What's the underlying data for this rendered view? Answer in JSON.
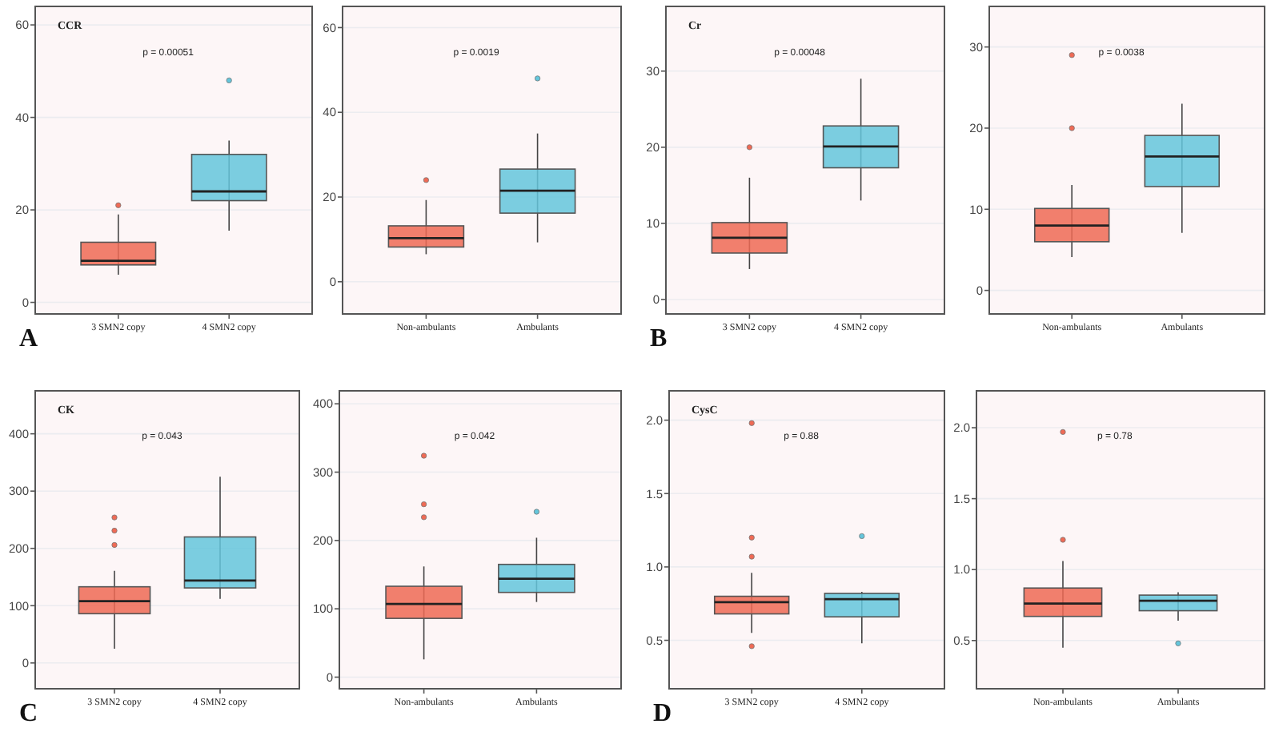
{
  "chart_data": [
    {
      "type": "box",
      "title": "CCR",
      "categories": [
        "3 SMN2 copy",
        "4 SMN2 copy"
      ],
      "colors": [
        "#ef6a55",
        "#64c6dc"
      ],
      "ylim": [
        -2.5,
        64
      ],
      "yticks": [
        0,
        20,
        40,
        60
      ],
      "grid": "y",
      "annotations": [
        "p = 0.00051",
        "A"
      ],
      "boxes": [
        {
          "low": 6,
          "q1": 8.1,
          "median": 9,
          "q3": 13,
          "high": 19,
          "outliers": [
            21
          ]
        },
        {
          "low": 15.5,
          "q1": 22,
          "median": 24,
          "q3": 32,
          "high": 35,
          "outliers": [
            48
          ]
        }
      ]
    },
    {
      "type": "box",
      "categories": [
        "Non-ambulants",
        "Ambulants"
      ],
      "colors": [
        "#ef6a55",
        "#64c6dc"
      ],
      "ylim": [
        -7.6,
        65
      ],
      "yticks": [
        0,
        20,
        40,
        60
      ],
      "grid": "y",
      "annotations": [
        "p = 0.0019"
      ],
      "boxes": [
        {
          "low": 6.5,
          "q1": 8.2,
          "median": 10.3,
          "q3": 13.2,
          "high": 19.3,
          "outliers": [
            24
          ]
        },
        {
          "low": 9.3,
          "q1": 16.2,
          "median": 21.5,
          "q3": 26.6,
          "high": 35,
          "outliers": [
            48
          ]
        }
      ]
    },
    {
      "type": "box",
      "title": "Cr",
      "categories": [
        "3 SMN2 copy",
        "4 SMN2 copy"
      ],
      "colors": [
        "#ef6a55",
        "#64c6dc"
      ],
      "ylim": [
        -1.9,
        38.5
      ],
      "yticks": [
        0,
        10,
        20,
        30
      ],
      "grid": "y",
      "annotations": [
        "p = 0.00048",
        "B"
      ],
      "boxes": [
        {
          "low": 4,
          "q1": 6.1,
          "median": 8.1,
          "q3": 10.1,
          "high": 16,
          "outliers": [
            20
          ]
        },
        {
          "low": 13,
          "q1": 17.3,
          "median": 20.1,
          "q3": 22.8,
          "high": 29
        }
      ]
    },
    {
      "type": "box",
      "categories": [
        "Non-ambulants",
        "Ambulants"
      ],
      "colors": [
        "#ef6a55",
        "#64c6dc"
      ],
      "ylim": [
        -2.9,
        35
      ],
      "yticks": [
        0,
        10,
        20,
        30
      ],
      "grid": "y",
      "annotations": [
        "p = 0.0038"
      ],
      "boxes": [
        {
          "low": 4.1,
          "q1": 6,
          "median": 8,
          "q3": 10.1,
          "high": 13,
          "outliers": [
            20,
            29
          ]
        },
        {
          "low": 7.1,
          "q1": 12.8,
          "median": 16.5,
          "q3": 19.1,
          "high": 23
        }
      ]
    },
    {
      "type": "box",
      "title": "CK",
      "categories": [
        "3 SMN2 copy",
        "4 SMN2 copy"
      ],
      "colors": [
        "#ef6a55",
        "#64c6dc"
      ],
      "ylim": [
        -45,
        475
      ],
      "yticks": [
        0,
        100,
        200,
        300,
        400
      ],
      "grid": "y",
      "annotations": [
        "p = 0.043",
        "C"
      ],
      "boxes": [
        {
          "low": 25,
          "q1": 86,
          "median": 108,
          "q3": 133,
          "high": 161,
          "outliers": [
            206,
            231,
            254
          ]
        },
        {
          "low": 112,
          "q1": 131,
          "median": 144,
          "q3": 220,
          "high": 325
        }
      ]
    },
    {
      "type": "box",
      "categories": [
        "Non-ambulants",
        "Ambulants"
      ],
      "colors": [
        "#ef6a55",
        "#64c6dc"
      ],
      "ylim": [
        -17,
        419
      ],
      "yticks": [
        0,
        100,
        200,
        300,
        400
      ],
      "grid": "y",
      "annotations": [
        "p = 0.042"
      ],
      "boxes": [
        {
          "low": 26,
          "q1": 86,
          "median": 107,
          "q3": 133,
          "high": 162,
          "outliers": [
            234,
            253,
            324
          ]
        },
        {
          "low": 110,
          "q1": 124,
          "median": 144,
          "q3": 165,
          "high": 204,
          "outliers": [
            242
          ]
        }
      ]
    },
    {
      "type": "box",
      "title": "CysC",
      "categories": [
        "3 SMN2 copy",
        "4 SMN2 copy"
      ],
      "colors": [
        "#ef6a55",
        "#64c6dc"
      ],
      "ylim": [
        0.17,
        2.2
      ],
      "yticks": [
        {
          "value": 0.5,
          "label": "0.5"
        },
        {
          "value": 1,
          "label": "1.0"
        },
        {
          "value": 1.5,
          "label": "1.5"
        },
        {
          "value": 2,
          "label": "2.0"
        }
      ],
      "grid": "y",
      "annotations": [
        "p = 0.88",
        "D"
      ],
      "boxes": [
        {
          "low": 0.55,
          "q1": 0.68,
          "median": 0.76,
          "q3": 0.8,
          "high": 0.96,
          "outliers": [
            0.46,
            1.07,
            1.2,
            1.98
          ]
        },
        {
          "low": 0.48,
          "q1": 0.66,
          "median": 0.78,
          "q3": 0.82,
          "high": 0.83,
          "outliers": [
            1.21
          ]
        }
      ]
    },
    {
      "type": "box",
      "categories": [
        "Non-ambulants",
        "Ambulants"
      ],
      "colors": [
        "#ef6a55",
        "#64c6dc"
      ],
      "ylim": [
        0.16,
        2.26
      ],
      "yticks": [
        {
          "value": 0.5,
          "label": "0.5"
        },
        {
          "value": 1,
          "label": "1.0"
        },
        {
          "value": 1.5,
          "label": "1.5"
        },
        {
          "value": 2,
          "label": "2.0"
        }
      ],
      "grid": "y",
      "annotations": [
        "p = 0.78"
      ],
      "boxes": [
        {
          "low": 0.45,
          "q1": 0.67,
          "median": 0.76,
          "q3": 0.87,
          "high": 1.06,
          "outliers": [
            1.21,
            1.97
          ]
        },
        {
          "low": 0.64,
          "q1": 0.71,
          "median": 0.78,
          "q3": 0.82,
          "high": 0.84,
          "outliers": [
            0.48
          ]
        }
      ]
    }
  ]
}
